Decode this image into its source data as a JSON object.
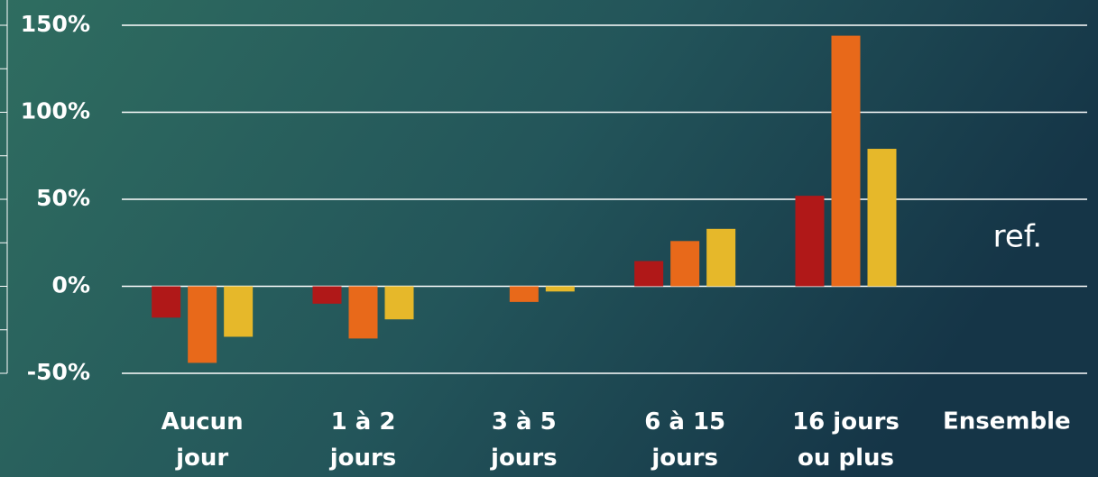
{
  "chart_data": {
    "type": "bar",
    "categories": [
      "Aucun\njour",
      "1 à 2\njours",
      "3 à 5\njours",
      "6 à 15\njours",
      "16 jours\nou plus",
      "Ensemble"
    ],
    "series": [
      {
        "color": "#b01818",
        "values": [
          -18,
          -10,
          null,
          14.5,
          52,
          null
        ]
      },
      {
        "color": "#e8691a",
        "values": [
          -44,
          -30,
          -9,
          26,
          144,
          null
        ]
      },
      {
        "color": "#e6b82a",
        "values": [
          -29,
          -19,
          -3,
          33,
          79,
          null
        ]
      }
    ],
    "annotation": "ref.",
    "ylim": [
      -50,
      150
    ],
    "yticks": [
      {
        "value": -50,
        "label": "-50%"
      },
      {
        "value": 0,
        "label": "0%"
      },
      {
        "value": 50,
        "label": "50%"
      },
      {
        "value": 100,
        "label": "100%"
      },
      {
        "value": 150,
        "label": "150%"
      }
    ],
    "minor_yticks": [
      -25,
      25,
      75,
      125
    ],
    "grid": true
  }
}
